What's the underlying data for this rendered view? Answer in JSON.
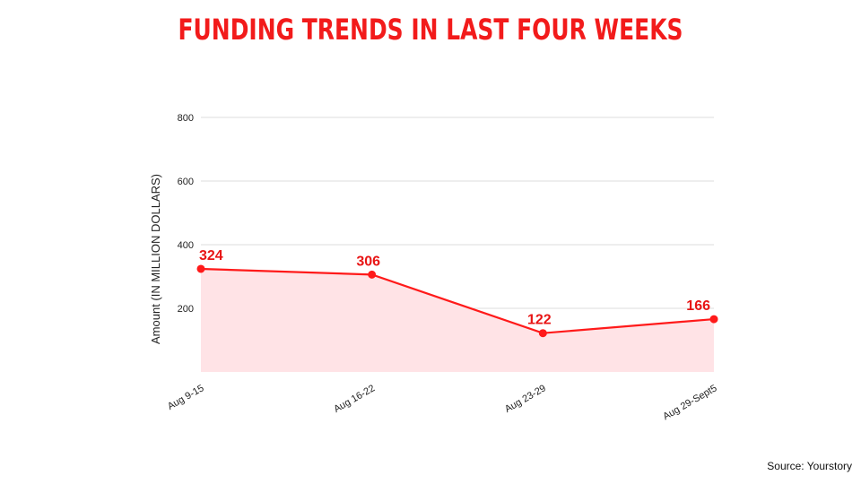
{
  "source_text": "Source: Yourstory",
  "colors": {
    "title": "#f21b1b",
    "line": "#ff1a1a",
    "area": "#ffe3e6",
    "grid": "#dddddd",
    "label": "#e81515"
  },
  "chart_data": {
    "type": "area",
    "title": "FUNDING TRENDS IN LAST FOUR WEEKS",
    "xlabel": "",
    "ylabel": "Amount (IN MILLION DOLLARS)",
    "categories": [
      "Aug 9-15",
      "Aug 16-22",
      "Aug 23-29",
      "Aug 29-Sept5"
    ],
    "values": [
      324,
      306,
      122,
      166
    ],
    "data_labels": [
      "324",
      "306",
      "122",
      "166"
    ],
    "yticks": [
      200,
      400,
      600,
      800
    ],
    "ytick_labels": [
      "200",
      "400",
      "600",
      "800"
    ],
    "ylim": [
      0,
      800
    ],
    "grid": true,
    "legend": "none",
    "markers": true
  }
}
